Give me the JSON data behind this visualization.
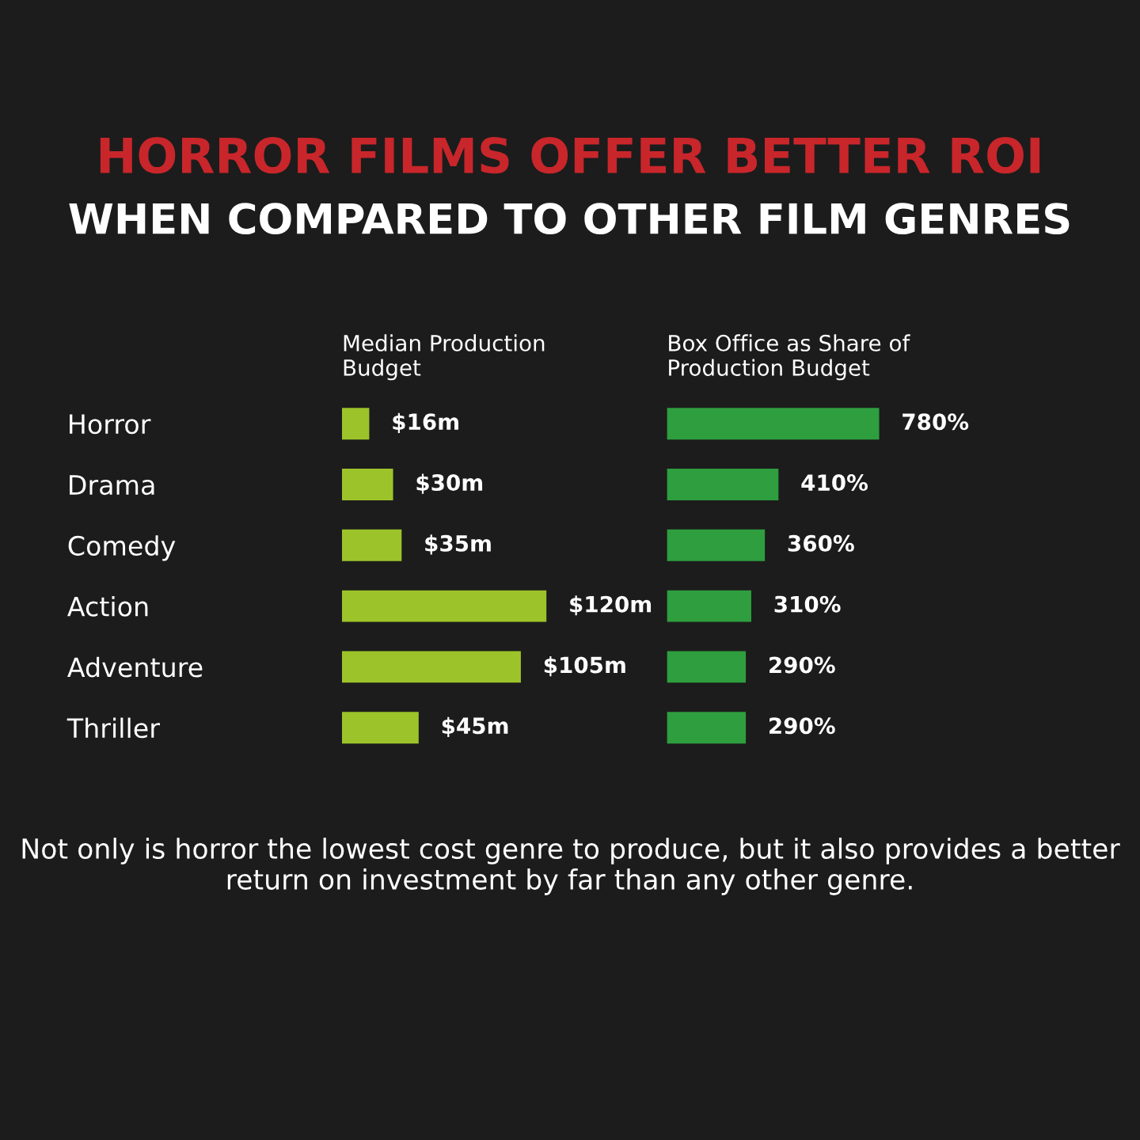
{
  "chart_data": [
    {
      "type": "other",
      "title": "HORROR FILMS OFFER BETTER ROI",
      "subtitle": "WHEN COMPARED TO OTHER FILM GENRES",
      "annotations": [
        "Not only is horror the lowest cost genre to produce, but it also provides a better return on investment by far than any other genre."
      ]
    },
    {
      "type": "bar",
      "orientation": "horizontal",
      "title": "Median Production\nBudget",
      "categories": [
        "Horror",
        "Drama",
        "Comedy",
        "Action",
        "Adventure",
        "Thriller"
      ],
      "values": [
        16,
        30,
        35,
        120,
        105,
        45
      ],
      "value_labels": [
        "$16m",
        "$30m",
        "$35m",
        "$120m",
        "$105m",
        "$45m"
      ],
      "color": "#9cc42a",
      "tick_labels": "y"
    },
    {
      "type": "bar",
      "orientation": "horizontal",
      "title": "Box Office as Share of\nProduction Budget",
      "categories": [
        null,
        null,
        null,
        null,
        null,
        null
      ],
      "values": [
        780,
        410,
        360,
        310,
        290,
        290
      ],
      "value_labels": [
        "780%",
        "410%",
        "360%",
        "310%",
        "290%",
        "290%"
      ],
      "color": "#2e9e3e",
      "tick_labels": false
    }
  ]
}
